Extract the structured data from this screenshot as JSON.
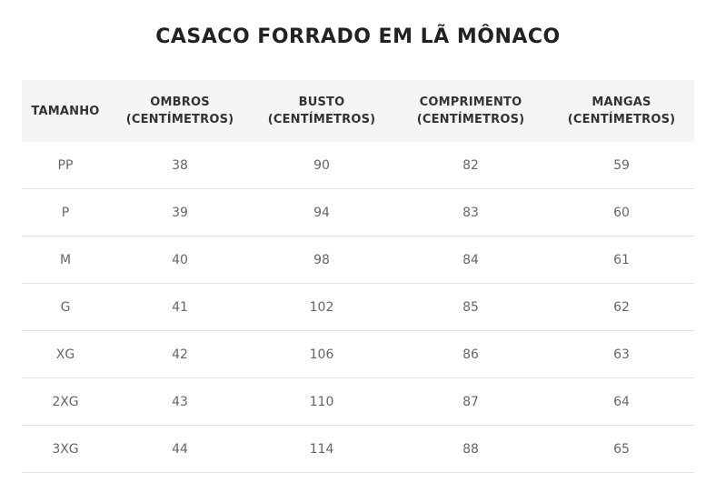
{
  "title": "CASACO FORRADO EM LÃ MÔNACO",
  "table": {
    "headers": [
      {
        "line1": "TAMANHO",
        "line2": ""
      },
      {
        "line1": "OMBROS",
        "line2": "(CENTÍMETROS)"
      },
      {
        "line1": "BUSTO",
        "line2": "(CENTÍMETROS)"
      },
      {
        "line1": "COMPRIMENTO",
        "line2": "(CENTÍMETROS)"
      },
      {
        "line1": "MANGAS",
        "line2": "(CENTÍMETROS)"
      }
    ],
    "rows": [
      [
        "PP",
        "38",
        "90",
        "82",
        "59"
      ],
      [
        "P",
        "39",
        "94",
        "83",
        "60"
      ],
      [
        "M",
        "40",
        "98",
        "84",
        "61"
      ],
      [
        "G",
        "41",
        "102",
        "85",
        "62"
      ],
      [
        "XG",
        "42",
        "106",
        "86",
        "63"
      ],
      [
        "2XG",
        "43",
        "110",
        "87",
        "64"
      ],
      [
        "3XG",
        "44",
        "114",
        "88",
        "65"
      ]
    ]
  }
}
